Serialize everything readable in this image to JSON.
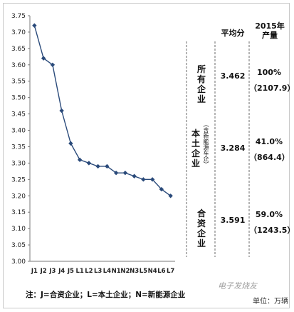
{
  "chart_data": {
    "type": "line",
    "x": [
      "J1",
      "J2",
      "J3",
      "J4",
      "J5",
      "L1",
      "L2",
      "L3",
      "L4",
      "N1",
      "N2",
      "N3",
      "L5",
      "N4",
      "L6",
      "L7"
    ],
    "values": [
      3.72,
      3.62,
      3.6,
      3.46,
      3.36,
      3.31,
      3.3,
      3.29,
      3.29,
      3.27,
      3.27,
      3.26,
      3.25,
      3.25,
      3.22,
      3.2
    ],
    "ylim": [
      3.0,
      3.75
    ],
    "yticks": [
      "3.75",
      "3.70",
      "3.65",
      "3.60",
      "3.55",
      "3.50",
      "3.45",
      "3.40",
      "3.35",
      "3.30",
      "3.25",
      "3.20",
      "3.15",
      "3.10",
      "3.05",
      "3.00"
    ],
    "line_color": "#2a4a7a",
    "grid": false,
    "title": "",
    "xlabel": "",
    "ylabel": ""
  },
  "table": {
    "header_avg": "平均分",
    "header_output": "2015年\n产量",
    "rows": [
      {
        "group": "所有企业",
        "group_note": "",
        "avg": "3.462",
        "share": "100%",
        "volume": "（2107.9）"
      },
      {
        "group": "本土企业",
        "group_note": "（含新能源车企）",
        "avg": "3.284",
        "share": "41.0%",
        "volume": "（864.4）"
      },
      {
        "group": "合资企业",
        "group_note": "",
        "avg": "3.591",
        "share": "59.0%",
        "volume": "（1243.5）"
      }
    ]
  },
  "note": "注：J=合资企业；L=本土企业；N=新能源企业",
  "unit": "单位：万辆",
  "watermark": "电子发烧友"
}
